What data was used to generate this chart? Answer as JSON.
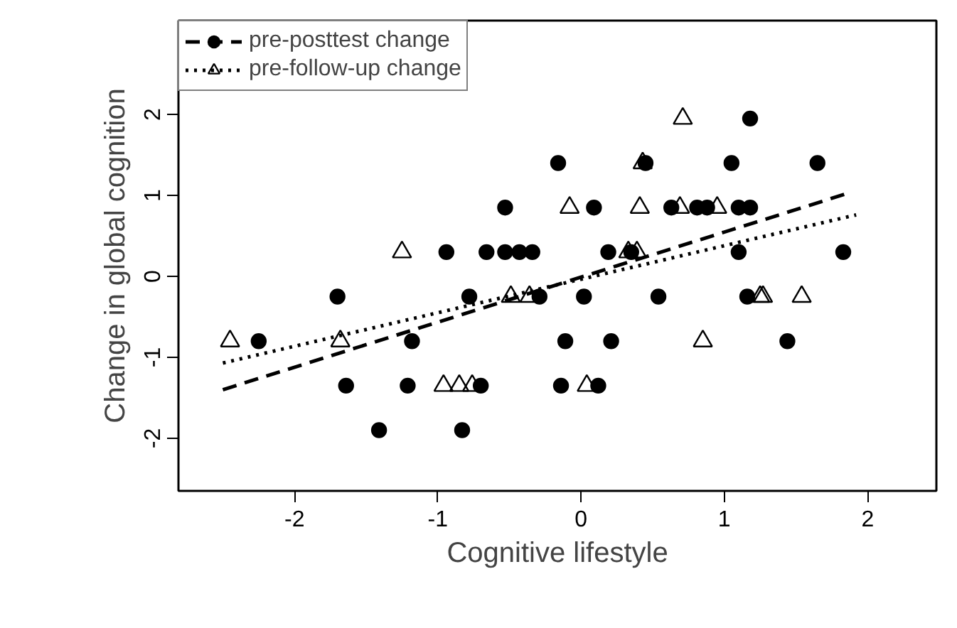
{
  "chart_data": {
    "type": "scatter",
    "xlabel": "Cognitive lifestyle",
    "ylabel": "Change in global cognition",
    "xlim": [
      -2.81,
      2.48
    ],
    "ylim": [
      -2.65,
      3.16
    ],
    "xticks": [
      -2,
      -1,
      0,
      1,
      2
    ],
    "yticks": [
      -2,
      -1,
      0,
      1,
      2
    ],
    "grid": false,
    "legend": "top left",
    "series": [
      {
        "name": "pre-posttest change",
        "color": "#000000",
        "marker": "circle",
        "x": [
          -0.16,
          -0.53,
          -0.94,
          -0.66,
          -0.53,
          -0.43,
          -0.34,
          -1.7,
          -0.78,
          -0.29,
          -2.25,
          -1.18,
          -0.11,
          -1.64,
          -1.21,
          -0.7,
          -0.14,
          -1.41,
          -0.83,
          1.18,
          0.45,
          1.05,
          1.65,
          0.09,
          0.63,
          0.81,
          0.88,
          1.1,
          1.18,
          0.19,
          0.35,
          1.1,
          1.83,
          0.02,
          0.54,
          1.16,
          0.21,
          1.44,
          0.12
        ],
        "values": [
          1.4,
          0.85,
          0.3,
          0.3,
          0.3,
          0.3,
          0.3,
          -0.25,
          -0.25,
          -0.25,
          -0.8,
          -0.8,
          -0.8,
          -1.35,
          -1.35,
          -1.35,
          -1.35,
          -1.9,
          -1.9,
          1.95,
          1.4,
          1.4,
          1.4,
          0.85,
          0.85,
          0.85,
          0.85,
          0.85,
          0.85,
          0.3,
          0.3,
          0.3,
          0.3,
          -0.25,
          -0.25,
          -0.25,
          -0.8,
          -0.8,
          -1.35
        ]
      },
      {
        "name": "pre-follow-up change",
        "color": "#000000",
        "marker": "triangle",
        "x": [
          -1.25,
          -2.45,
          -1.68,
          -0.96,
          -0.85,
          -0.76,
          -0.49,
          -0.36,
          0.71,
          0.43,
          -0.08,
          0.41,
          0.69,
          0.95,
          0.33,
          0.39,
          1.27,
          1.25,
          1.54,
          0.85,
          0.04
        ],
        "values": [
          0.3,
          -0.8,
          -0.8,
          -1.35,
          -1.35,
          -1.35,
          -0.25,
          -0.25,
          1.95,
          1.4,
          0.85,
          0.85,
          0.85,
          0.85,
          0.3,
          0.3,
          -0.25,
          -0.25,
          -0.25,
          -0.8,
          -1.35
        ]
      },
      {
        "type": "line",
        "line_style": "dashed",
        "color": "#000000",
        "x": [
          -2.5,
          1.85
        ],
        "values": [
          -1.4,
          1.02
        ]
      },
      {
        "type": "line",
        "line_style": "dotted",
        "color": "#000000",
        "x": [
          -2.5,
          1.92
        ],
        "values": [
          -1.07,
          0.76
        ]
      }
    ]
  }
}
